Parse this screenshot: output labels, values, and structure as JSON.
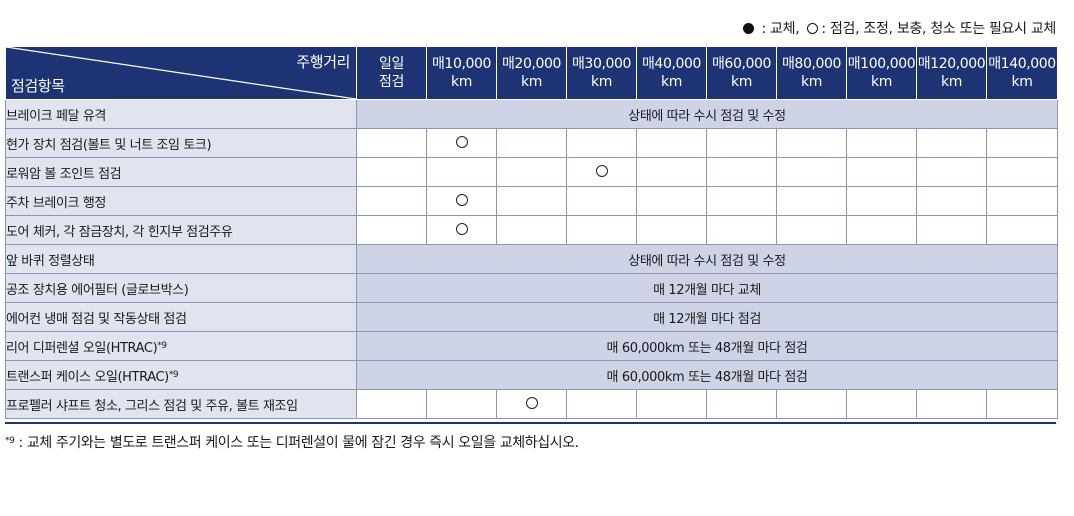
{
  "legend": {
    "filled": "교체",
    "open": "점검, 조정, 보충, 청소 또는 필요시 교체"
  },
  "header": {
    "distance_label": "주행거리",
    "item_label": "점검항목",
    "columns": [
      {
        "top": "일일",
        "bottom": "점검"
      },
      {
        "top": "매10,000",
        "bottom": "km"
      },
      {
        "top": "매20,000",
        "bottom": "km"
      },
      {
        "top": "매30,000",
        "bottom": "km"
      },
      {
        "top": "매40,000",
        "bottom": "km"
      },
      {
        "top": "매60,000",
        "bottom": "km"
      },
      {
        "top": "매80,000",
        "bottom": "km"
      },
      {
        "top": "매100,000",
        "bottom": "km"
      },
      {
        "top": "매120,000",
        "bottom": "km"
      },
      {
        "top": "매140,000",
        "bottom": "km"
      }
    ]
  },
  "rows": [
    {
      "name": "브레이크 페달 유격",
      "span": "상태에 따라 수시 점검 및 수정"
    },
    {
      "name": "현가 장치 점검(볼트 및 너트 조임 토크)",
      "marks": [
        1
      ]
    },
    {
      "name": "로워암 볼 조인트 점검",
      "marks": [
        3
      ]
    },
    {
      "name": "주차 브레이크 행정",
      "marks": [
        1
      ]
    },
    {
      "name": "도어 체커, 각 잠금장치, 각 힌지부 점검주유",
      "marks": [
        1
      ]
    },
    {
      "name": "앞 바퀴 정렬상태",
      "span": "상태에 따라 수시 점검 및 수정"
    },
    {
      "name": "공조 장치용 에어필터 (글로브박스)",
      "span": "매 12개월 마다 교체"
    },
    {
      "name": "에어컨 냉매 점검 및 작동상태 점검",
      "span": "매 12개월 마다 점검"
    },
    {
      "name": "리어 디퍼렌셜 오일(HTRAC)",
      "sup": "*9",
      "span": "매 60,000km 또는 48개월 마다 점검"
    },
    {
      "name": "트랜스퍼 케이스 오일(HTRAC)",
      "sup": "*9",
      "span": "매 60,000km 또는 48개월 마다 점검"
    },
    {
      "name": "프로펠러 샤프트 청소, 그리스 점검 및 주유, 볼트 재조임",
      "marks": [
        2
      ]
    }
  ],
  "footnote": {
    "mark": "*9",
    "text": " : 교체 주기와는 별도로 트랜스퍼 케이스 또는 디퍼렌셜이 물에 잠긴 경우 즉시 오일을 교체하십시오."
  }
}
